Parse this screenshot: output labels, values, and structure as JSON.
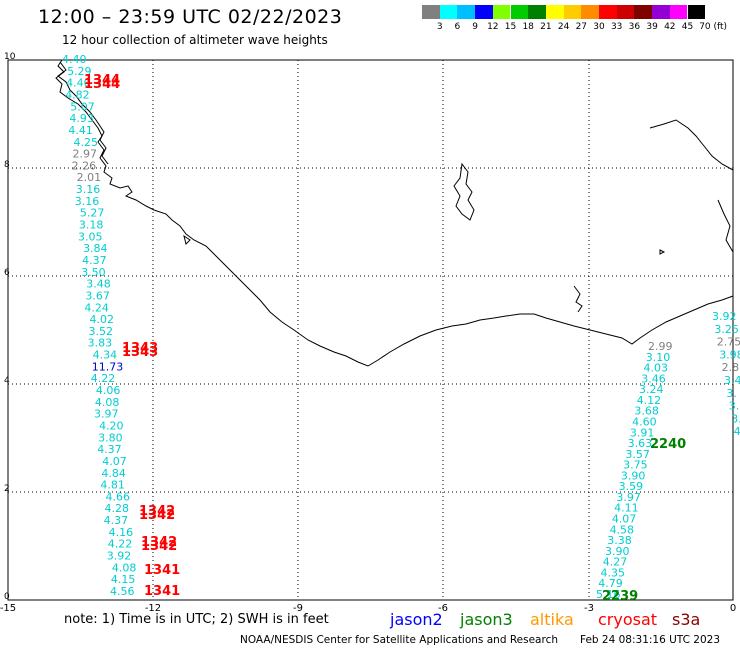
{
  "header": {
    "title": "12:00 – 23:59 UTC 02/22/2023",
    "subtitle": "12 hour collection of altimeter wave heights"
  },
  "colorbar": {
    "labels": [
      "3",
      "6",
      "9",
      "12",
      "15",
      "18",
      "21",
      "24",
      "27",
      "30",
      "33",
      "36",
      "39",
      "42",
      "45",
      "70 (ft)"
    ],
    "colors": [
      "#808080",
      "#00ffff",
      "#00bfff",
      "#0000ff",
      "#7fff00",
      "#00cc00",
      "#008000",
      "#ffff00",
      "#ffcc00",
      "#ff8c00",
      "#ff0000",
      "#cc0000",
      "#800000",
      "#9400d3",
      "#ff00ff",
      "#000000"
    ]
  },
  "axes": {
    "x_ticks": [
      "-15",
      "-12",
      "-9",
      "-6",
      "-3",
      "0"
    ],
    "y_ticks": [
      "0",
      "2",
      "4",
      "6",
      "8",
      "10"
    ]
  },
  "footer": {
    "note": "note:  1) Time is in UTC;  2) SWH is in feet",
    "credit": "NOAA/NESDIS Center for Satellite Applications and Research",
    "timestamp": "Feb 24 08:31:16 UTC 2023"
  },
  "legend": [
    {
      "label": "jason2",
      "color": "#0000ff"
    },
    {
      "label": "jason3",
      "color": "#008000"
    },
    {
      "label": "altika",
      "color": "#ff9900"
    },
    {
      "label": "cryosat",
      "color": "#ff0000"
    },
    {
      "label": "s3a",
      "color": "#8b0000"
    }
  ],
  "tracks": {
    "track1": {
      "pass_id": "2239",
      "wave_heights": [
        "5.16",
        "4.79",
        "4.35",
        "4.27",
        "3.90",
        "3.38",
        "4.58",
        "4.07",
        "4.11",
        "3.97",
        "3.59",
        "3.90",
        "3.75",
        "3.57",
        "3.63",
        "3.91",
        "4.60",
        "3.68",
        "4.12",
        "3.24",
        "3.46",
        "4.03",
        "3.10",
        "2.99"
      ]
    },
    "track2": {
      "pass_id": "2240"
    },
    "track3": {
      "wave_heights": [
        "3.92",
        "3.25",
        "2.75",
        "3.98",
        "2.8",
        "3.4",
        "3.",
        "3.",
        "3.",
        "4."
      ]
    },
    "track4": {
      "wave_heights": [
        "4.56",
        "4.15",
        "4.08",
        "3.92",
        "4.22",
        "4.16",
        "4.37",
        "4.28",
        "4.66",
        "4.81",
        "4.84",
        "4.07",
        "4.37",
        "3.80",
        "4.20",
        "3.97",
        "4.08",
        "4.06",
        "4.22",
        "11.73",
        "4.34",
        "3.83",
        "3.52",
        "4.02",
        "4.24",
        "3.67",
        "3.48",
        "3.50",
        "4.37",
        "3.84",
        "3.05",
        "3.18",
        "5.27",
        "3.16",
        "3.16",
        "2.01",
        "2.26",
        "2.97",
        "4.25",
        "4.41",
        "4.93",
        "5.07",
        "4.82",
        "4.40",
        "5.29",
        "4.40"
      ],
      "pass_ids": [
        "1341",
        "1341",
        "1342",
        "1342",
        "1342",
        "1342",
        "1343",
        "1343",
        "1344",
        "1344"
      ]
    }
  }
}
